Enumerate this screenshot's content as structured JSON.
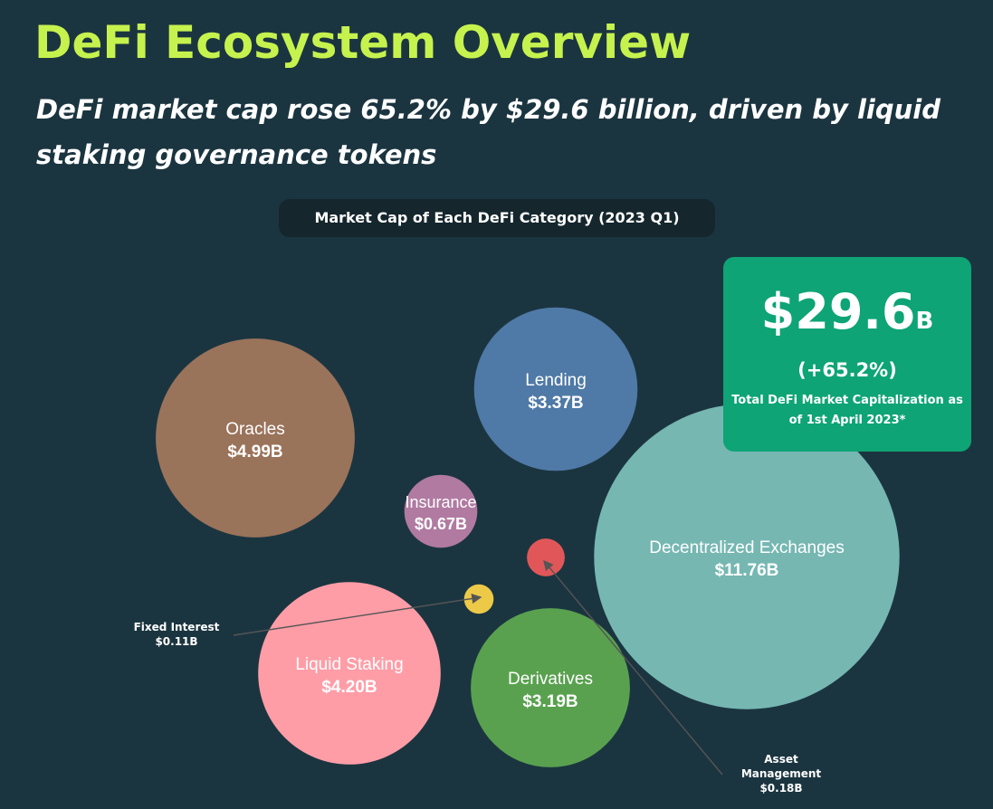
{
  "header": {
    "title": "DeFi Ecosystem Overview",
    "subtitle": "DeFi market cap rose 65.2% by $29.6 billion, driven by liquid staking governance tokens"
  },
  "kpi": {
    "value": "$29.6",
    "unit": "B",
    "change": "(+65.2%)",
    "caption": "Total DeFi Market Capitalization as of 1st April 2023*"
  },
  "chart_data": {
    "type": "bubble",
    "title": "Market Cap of Each DeFi Category (2023 Q1)",
    "unit": "$B",
    "series": [
      {
        "name": "Oracles",
        "value": 4.99,
        "label": "$4.99B",
        "color": "#9a735b"
      },
      {
        "name": "Lending",
        "value": 3.37,
        "label": "$3.37B",
        "color": "#4f79a6"
      },
      {
        "name": "Insurance",
        "value": 0.67,
        "label": "$0.67B",
        "color": "#b07aa1"
      },
      {
        "name": "Decentralized Exchanges",
        "value": 11.76,
        "label": "$11.76B",
        "color": "#76b7b2"
      },
      {
        "name": "Asset Management",
        "value": 0.18,
        "label": "$0.18B",
        "color": "#e15759"
      },
      {
        "name": "Fixed Interest",
        "value": 0.11,
        "label": "$0.11B",
        "color": "#edc948"
      },
      {
        "name": "Liquid Staking",
        "value": 4.2,
        "label": "$4.20B",
        "color": "#ff9da7"
      },
      {
        "name": "Derivatives",
        "value": 3.19,
        "label": "$3.19B",
        "color": "#59a14f"
      }
    ],
    "callouts": [
      {
        "name_lines": [
          "Fixed Interest"
        ],
        "label": "$0.11B"
      },
      {
        "name_lines": [
          "Asset",
          "Management"
        ],
        "label": "$0.18B"
      }
    ],
    "legend": "none",
    "grid": false
  }
}
